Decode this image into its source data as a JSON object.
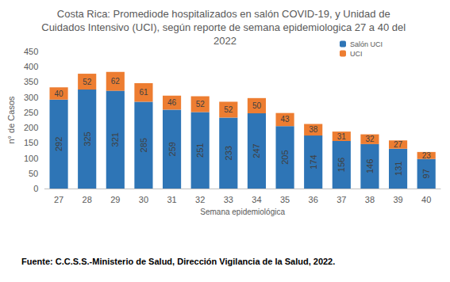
{
  "chart_data": {
    "type": "bar",
    "title": "Costa Rica: Promediode hospitalizados en salón COVID-19, y Unidad de Cuidados Intensivo (UCI), según reporte de semana epidemiologica 27 a 40 del 2022",
    "source": "Fuente: C.C.S.S.-Ministerio de Salud, Dirección Vigilancia de la Salud, 2022.",
    "x_label": "Semana epidemiológica",
    "y_label": "n° de Casos",
    "categories": [
      "27",
      "28",
      "29",
      "30",
      "31",
      "32",
      "33",
      "34",
      "35",
      "36",
      "37",
      "38",
      "39",
      "40"
    ],
    "series": [
      {
        "name": "Salón UCI",
        "color": "#2e75b6",
        "values": [
          292,
          325,
          321,
          285,
          259,
          251,
          233,
          247,
          205,
          174,
          156,
          146,
          131,
          97
        ]
      },
      {
        "name": "UCI",
        "color": "#ed7d31",
        "values": [
          40,
          52,
          62,
          61,
          46,
          52,
          52,
          50,
          43,
          38,
          31,
          32,
          27,
          23
        ]
      }
    ],
    "ylim": [
      0,
      450
    ],
    "yticks": [
      0,
      50,
      100,
      150,
      200,
      250,
      300,
      350,
      400,
      450
    ],
    "stacked": true,
    "data_labels": true,
    "grid": false,
    "legend": "upper right"
  }
}
